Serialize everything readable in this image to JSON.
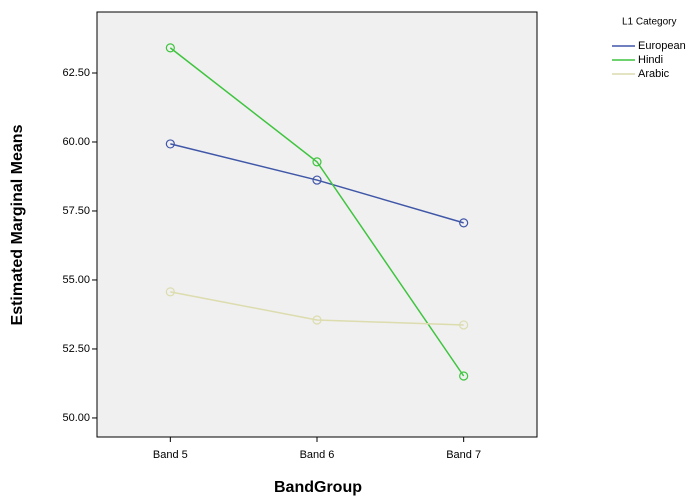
{
  "chart_data": {
    "type": "line",
    "x_label": "BandGroup",
    "y_label": "Estimated Marginal Means",
    "legend_title": "L1 Category",
    "legend_position": "right",
    "categories": [
      "Band 5",
      "Band 6",
      "Band 7"
    ],
    "series": [
      {
        "name": "European",
        "color": "#4057a8",
        "values": [
          59.93,
          58.62,
          57.07
        ]
      },
      {
        "name": "Hindi",
        "color": "#3ec43e",
        "values": [
          63.41,
          59.28,
          51.52
        ]
      },
      {
        "name": "Arabic",
        "color": "#dcdcae",
        "values": [
          54.57,
          53.55,
          53.37
        ]
      }
    ],
    "ylim": [
      49.31,
      64.71
    ],
    "yticks": [
      {
        "value": 50,
        "label": "50.00"
      },
      {
        "value": 52.5,
        "label": "52.50"
      },
      {
        "value": 55,
        "label": "55.00"
      },
      {
        "value": 57.5,
        "label": "57.50"
      },
      {
        "value": 60,
        "label": "60.00"
      },
      {
        "value": 62.5,
        "label": "62.50"
      }
    ],
    "background": "#f0f0f0"
  }
}
